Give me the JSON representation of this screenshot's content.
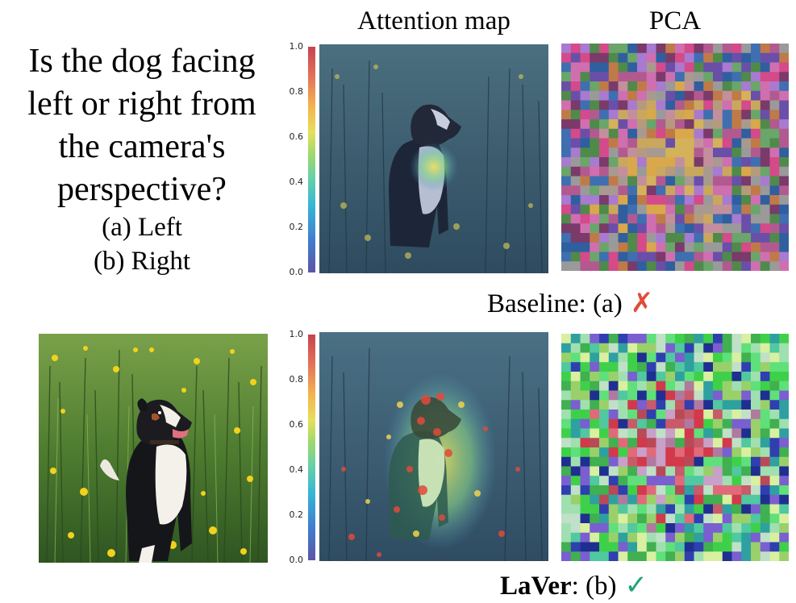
{
  "headers": {
    "attention": "Attention map",
    "pca": "PCA"
  },
  "question": {
    "text": "Is the dog facing left or right from the camera's perspective?",
    "option_a": "(a) Left",
    "option_b": "(b) Right"
  },
  "colorbar": {
    "ticks": [
      "1.0",
      "0.8",
      "0.6",
      "0.4",
      "0.2",
      "0.0"
    ]
  },
  "results": {
    "baseline": {
      "label": "Baseline",
      "separator": ":",
      "answer": "(a)",
      "mark_icon": "red-cross-icon",
      "mark": "✗",
      "mark_color": "#e24a3b"
    },
    "laver": {
      "label": "LaVer",
      "separator": ":",
      "answer": "(b)",
      "mark_icon": "green-check-icon",
      "mark": "✓",
      "mark_color": "#1fa37a"
    }
  },
  "colors": {
    "grass": "#3f6b2a",
    "dandelion": "#f2d21c"
  }
}
